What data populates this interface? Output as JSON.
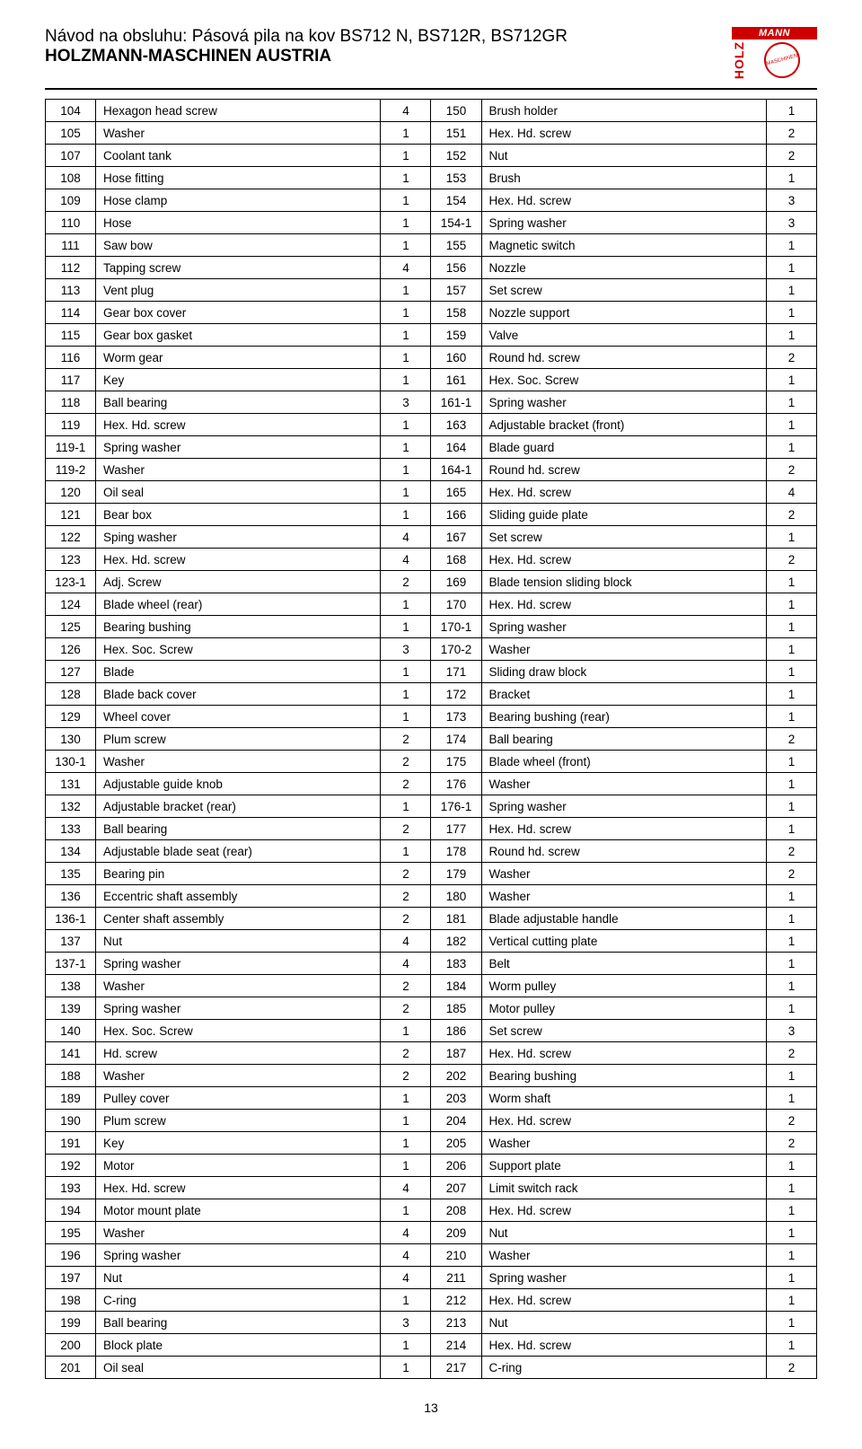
{
  "header": {
    "line1": "Návod na obsluhu: Pásová pila na kov BS712 N, BS712R, BS712GR",
    "line2": "HOLZMANN-MASCHINEN AUSTRIA",
    "logo_brand_top": "MANN",
    "logo_brand_side": "HOLZ",
    "logo_circle_text": "MASCHINEN"
  },
  "page_number": "13",
  "rows": [
    {
      "n1": "104",
      "d1": "Hexagon head screw",
      "q1": "4",
      "n2": "150",
      "d2": "Brush holder",
      "q2": "1"
    },
    {
      "n1": "105",
      "d1": "Washer",
      "q1": "1",
      "n2": "151",
      "d2": "Hex. Hd. screw",
      "q2": "2"
    },
    {
      "n1": "107",
      "d1": "Coolant tank",
      "q1": "1",
      "n2": "152",
      "d2": "Nut",
      "q2": "2"
    },
    {
      "n1": "108",
      "d1": "Hose fitting",
      "q1": "1",
      "n2": "153",
      "d2": "Brush",
      "q2": "1"
    },
    {
      "n1": "109",
      "d1": "Hose clamp",
      "q1": "1",
      "n2": "154",
      "d2": "Hex. Hd. screw",
      "q2": "3"
    },
    {
      "n1": "110",
      "d1": "Hose",
      "q1": "1",
      "n2": "154-1",
      "d2": "Spring washer",
      "q2": "3"
    },
    {
      "n1": "111",
      "d1": "Saw bow",
      "q1": "1",
      "n2": "155",
      "d2": "Magnetic switch",
      "q2": "1"
    },
    {
      "n1": "112",
      "d1": "Tapping screw",
      "q1": "4",
      "n2": "156",
      "d2": "Nozzle",
      "q2": "1"
    },
    {
      "n1": "113",
      "d1": "Vent plug",
      "q1": "1",
      "n2": "157",
      "d2": "Set screw",
      "q2": "1"
    },
    {
      "n1": "114",
      "d1": "Gear box cover",
      "q1": "1",
      "n2": "158",
      "d2": "Nozzle support",
      "q2": "1"
    },
    {
      "n1": "115",
      "d1": "Gear box gasket",
      "q1": "1",
      "n2": "159",
      "d2": "Valve",
      "q2": "1"
    },
    {
      "n1": "116",
      "d1": "Worm gear",
      "q1": "1",
      "n2": "160",
      "d2": "Round hd. screw",
      "q2": "2"
    },
    {
      "n1": "117",
      "d1": "Key",
      "q1": "1",
      "n2": "161",
      "d2": "Hex. Soc. Screw",
      "q2": "1"
    },
    {
      "n1": "118",
      "d1": "Ball bearing",
      "q1": "3",
      "n2": "161-1",
      "d2": "Spring washer",
      "q2": "1"
    },
    {
      "n1": "119",
      "d1": "Hex. Hd. screw",
      "q1": "1",
      "n2": "163",
      "d2": "Adjustable bracket (front)",
      "q2": "1"
    },
    {
      "n1": "119-1",
      "d1": "Spring washer",
      "q1": "1",
      "n2": "164",
      "d2": "Blade guard",
      "q2": "1"
    },
    {
      "n1": "119-2",
      "d1": "Washer",
      "q1": "1",
      "n2": "164-1",
      "d2": "Round hd. screw",
      "q2": "2"
    },
    {
      "n1": "120",
      "d1": "Oil seal",
      "q1": "1",
      "n2": "165",
      "d2": "Hex. Hd. screw",
      "q2": "4"
    },
    {
      "n1": "121",
      "d1": "Bear box",
      "q1": "1",
      "n2": "166",
      "d2": "Sliding guide plate",
      "q2": "2"
    },
    {
      "n1": "122",
      "d1": "Sping washer",
      "q1": "4",
      "n2": "167",
      "d2": "Set screw",
      "q2": "1"
    },
    {
      "n1": "123",
      "d1": "Hex. Hd. screw",
      "q1": "4",
      "n2": "168",
      "d2": "Hex. Hd. screw",
      "q2": "2"
    },
    {
      "n1": "123-1",
      "d1": "Adj. Screw",
      "q1": "2",
      "n2": "169",
      "d2": "Blade tension sliding block",
      "q2": "1"
    },
    {
      "n1": "124",
      "d1": "Blade wheel (rear)",
      "q1": "1",
      "n2": "170",
      "d2": "Hex. Hd. screw",
      "q2": "1"
    },
    {
      "n1": "125",
      "d1": "Bearing bushing",
      "q1": "1",
      "n2": "170-1",
      "d2": "Spring washer",
      "q2": "1"
    },
    {
      "n1": "126",
      "d1": "Hex. Soc. Screw",
      "q1": "3",
      "n2": "170-2",
      "d2": "Washer",
      "q2": "1"
    },
    {
      "n1": "127",
      "d1": "Blade",
      "q1": "1",
      "n2": "171",
      "d2": "Sliding draw block",
      "q2": "1"
    },
    {
      "n1": "128",
      "d1": "Blade back cover",
      "q1": "1",
      "n2": "172",
      "d2": "Bracket",
      "q2": "1"
    },
    {
      "n1": "129",
      "d1": "Wheel cover",
      "q1": "1",
      "n2": "173",
      "d2": "Bearing bushing (rear)",
      "q2": "1"
    },
    {
      "n1": "130",
      "d1": "Plum screw",
      "q1": "2",
      "n2": "174",
      "d2": "Ball bearing",
      "q2": "2"
    },
    {
      "n1": "130-1",
      "d1": "Washer",
      "q1": "2",
      "n2": "175",
      "d2": "Blade wheel (front)",
      "q2": "1"
    },
    {
      "n1": "131",
      "d1": "Adjustable guide knob",
      "q1": "2",
      "n2": "176",
      "d2": "Washer",
      "q2": "1"
    },
    {
      "n1": "132",
      "d1": "Adjustable bracket (rear)",
      "q1": "1",
      "n2": "176-1",
      "d2": "Spring washer",
      "q2": "1"
    },
    {
      "n1": "133",
      "d1": "Ball bearing",
      "q1": "2",
      "n2": "177",
      "d2": "Hex. Hd. screw",
      "q2": "1"
    },
    {
      "n1": "134",
      "d1": "Adjustable blade seat (rear)",
      "q1": "1",
      "n2": "178",
      "d2": "Round hd. screw",
      "q2": "2"
    },
    {
      "n1": "135",
      "d1": "Bearing pin",
      "q1": "2",
      "n2": "179",
      "d2": "Washer",
      "q2": "2"
    },
    {
      "n1": "136",
      "d1": "Eccentric shaft assembly",
      "q1": "2",
      "n2": "180",
      "d2": "Washer",
      "q2": "1"
    },
    {
      "n1": "136-1",
      "d1": "Center shaft assembly",
      "q1": "2",
      "n2": "181",
      "d2": "Blade adjustable handle",
      "q2": "1"
    },
    {
      "n1": "137",
      "d1": "Nut",
      "q1": "4",
      "n2": "182",
      "d2": "Vertical cutting plate",
      "q2": "1"
    },
    {
      "n1": "137-1",
      "d1": "Spring washer",
      "q1": "4",
      "n2": "183",
      "d2": "Belt",
      "q2": "1"
    },
    {
      "n1": "138",
      "d1": "Washer",
      "q1": "2",
      "n2": "184",
      "d2": "Worm pulley",
      "q2": "1"
    },
    {
      "n1": "139",
      "d1": "Spring washer",
      "q1": "2",
      "n2": "185",
      "d2": "Motor pulley",
      "q2": "1"
    },
    {
      "n1": "140",
      "d1": "Hex. Soc. Screw",
      "q1": "1",
      "n2": "186",
      "d2": "Set screw",
      "q2": "3"
    },
    {
      "n1": "141",
      "d1": "Hd. screw",
      "q1": "2",
      "n2": "187",
      "d2": "Hex. Hd. screw",
      "q2": "2"
    },
    {
      "n1": "188",
      "d1": "Washer",
      "q1": "2",
      "n2": "202",
      "d2": "Bearing bushing",
      "q2": "1"
    },
    {
      "n1": "189",
      "d1": "Pulley cover",
      "q1": "1",
      "n2": "203",
      "d2": "Worm shaft",
      "q2": "1"
    },
    {
      "n1": "190",
      "d1": "Plum screw",
      "q1": "1",
      "n2": "204",
      "d2": "Hex. Hd. screw",
      "q2": "2"
    },
    {
      "n1": "191",
      "d1": "Key",
      "q1": "1",
      "n2": "205",
      "d2": "Washer",
      "q2": "2"
    },
    {
      "n1": "192",
      "d1": "Motor",
      "q1": "1",
      "n2": "206",
      "d2": "Support plate",
      "q2": "1"
    },
    {
      "n1": "193",
      "d1": "Hex. Hd. screw",
      "q1": "4",
      "n2": "207",
      "d2": "Limit switch rack",
      "q2": "1"
    },
    {
      "n1": "194",
      "d1": "Motor mount plate",
      "q1": "1",
      "n2": "208",
      "d2": "Hex. Hd. screw",
      "q2": "1"
    },
    {
      "n1": "195",
      "d1": "Washer",
      "q1": "4",
      "n2": "209",
      "d2": "Nut",
      "q2": "1"
    },
    {
      "n1": "196",
      "d1": "Spring washer",
      "q1": "4",
      "n2": "210",
      "d2": "Washer",
      "q2": "1"
    },
    {
      "n1": "197",
      "d1": "Nut",
      "q1": "4",
      "n2": "211",
      "d2": "Spring washer",
      "q2": "1"
    },
    {
      "n1": "198",
      "d1": "C-ring",
      "q1": "1",
      "n2": "212",
      "d2": "Hex. Hd. screw",
      "q2": "1"
    },
    {
      "n1": "199",
      "d1": "Ball bearing",
      "q1": "3",
      "n2": "213",
      "d2": "Nut",
      "q2": "1"
    },
    {
      "n1": "200",
      "d1": "Block plate",
      "q1": "1",
      "n2": "214",
      "d2": "Hex. Hd. screw",
      "q2": "1"
    },
    {
      "n1": "201",
      "d1": "Oil seal",
      "q1": "1",
      "n2": "217",
      "d2": "C-ring",
      "q2": "2"
    }
  ]
}
